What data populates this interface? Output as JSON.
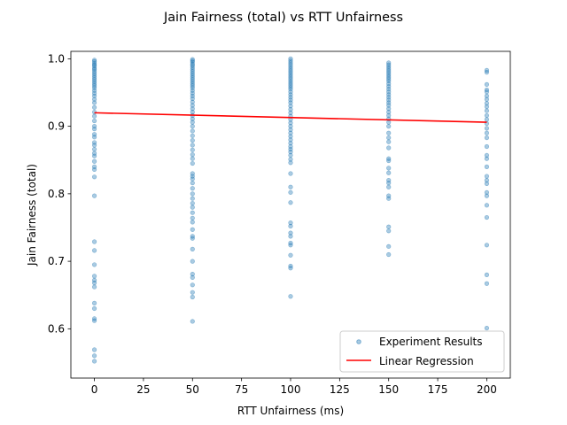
{
  "chart_data": {
    "type": "scatter",
    "title": "Jain Fairness (total) vs RTT Unfairness",
    "xlabel": "RTT Unfairness (ms)",
    "ylabel": "Jain Fairness (total)",
    "xlim": [
      -12,
      212
    ],
    "ylim": [
      0.527,
      1.011
    ],
    "xticks": [
      0,
      25,
      50,
      75,
      100,
      125,
      150,
      175,
      200
    ],
    "yticks": [
      0.6,
      0.7,
      0.8,
      0.9,
      1.0
    ],
    "xtick_labels": [
      "0",
      "25",
      "50",
      "75",
      "100",
      "125",
      "150",
      "175",
      "200"
    ],
    "ytick_labels": [
      "0.6",
      "0.7",
      "0.8",
      "0.9",
      "1.0"
    ],
    "grid": false,
    "legend_position": "lower-right",
    "series": [
      {
        "name": "Experiment Results",
        "kind": "points",
        "color": "#1f77b4",
        "points": [
          [
            0,
            0.998
          ],
          [
            0,
            0.996
          ],
          [
            0,
            0.993
          ],
          [
            0,
            0.991
          ],
          [
            0,
            0.989
          ],
          [
            0,
            0.986
          ],
          [
            0,
            0.984
          ],
          [
            0,
            0.981
          ],
          [
            0,
            0.978
          ],
          [
            0,
            0.975
          ],
          [
            0,
            0.972
          ],
          [
            0,
            0.969
          ],
          [
            0,
            0.966
          ],
          [
            0,
            0.963
          ],
          [
            0,
            0.96
          ],
          [
            0,
            0.957
          ],
          [
            0,
            0.953
          ],
          [
            0,
            0.949
          ],
          [
            0,
            0.945
          ],
          [
            0,
            0.94
          ],
          [
            0,
            0.935
          ],
          [
            0,
            0.928
          ],
          [
            0,
            0.921
          ],
          [
            0,
            0.915
          ],
          [
            0,
            0.908
          ],
          [
            0,
            0.9
          ],
          [
            0,
            0.896
          ],
          [
            0,
            0.888
          ],
          [
            0,
            0.884
          ],
          [
            0,
            0.876
          ],
          [
            0,
            0.872
          ],
          [
            0,
            0.866
          ],
          [
            0,
            0.86
          ],
          [
            0,
            0.856
          ],
          [
            0,
            0.848
          ],
          [
            0,
            0.84
          ],
          [
            0,
            0.836
          ],
          [
            0,
            0.825
          ],
          [
            0,
            0.797
          ],
          [
            0,
            0.729
          ],
          [
            0,
            0.716
          ],
          [
            0,
            0.695
          ],
          [
            0,
            0.678
          ],
          [
            0,
            0.672
          ],
          [
            0,
            0.668
          ],
          [
            0,
            0.662
          ],
          [
            0,
            0.638
          ],
          [
            0,
            0.63
          ],
          [
            0,
            0.615
          ],
          [
            0,
            0.612
          ],
          [
            0,
            0.569
          ],
          [
            0,
            0.56
          ],
          [
            0,
            0.552
          ],
          [
            50,
            0.999
          ],
          [
            50,
            0.997
          ],
          [
            50,
            0.995
          ],
          [
            50,
            0.992
          ],
          [
            50,
            0.99
          ],
          [
            50,
            0.987
          ],
          [
            50,
            0.984
          ],
          [
            50,
            0.981
          ],
          [
            50,
            0.978
          ],
          [
            50,
            0.975
          ],
          [
            50,
            0.972
          ],
          [
            50,
            0.969
          ],
          [
            50,
            0.966
          ],
          [
            50,
            0.963
          ],
          [
            50,
            0.96
          ],
          [
            50,
            0.957
          ],
          [
            50,
            0.953
          ],
          [
            50,
            0.949
          ],
          [
            50,
            0.945
          ],
          [
            50,
            0.941
          ],
          [
            50,
            0.936
          ],
          [
            50,
            0.931
          ],
          [
            50,
            0.926
          ],
          [
            50,
            0.921
          ],
          [
            50,
            0.916
          ],
          [
            50,
            0.911
          ],
          [
            50,
            0.906
          ],
          [
            50,
            0.9
          ],
          [
            50,
            0.893
          ],
          [
            50,
            0.886
          ],
          [
            50,
            0.879
          ],
          [
            50,
            0.872
          ],
          [
            50,
            0.865
          ],
          [
            50,
            0.858
          ],
          [
            50,
            0.852
          ],
          [
            50,
            0.845
          ],
          [
            50,
            0.83
          ],
          [
            50,
            0.826
          ],
          [
            50,
            0.822
          ],
          [
            50,
            0.816
          ],
          [
            50,
            0.808
          ],
          [
            50,
            0.8
          ],
          [
            50,
            0.793
          ],
          [
            50,
            0.786
          ],
          [
            50,
            0.78
          ],
          [
            50,
            0.772
          ],
          [
            50,
            0.764
          ],
          [
            50,
            0.758
          ],
          [
            50,
            0.747
          ],
          [
            50,
            0.737
          ],
          [
            50,
            0.734
          ],
          [
            50,
            0.718
          ],
          [
            50,
            0.7
          ],
          [
            50,
            0.681
          ],
          [
            50,
            0.676
          ],
          [
            50,
            0.665
          ],
          [
            50,
            0.654
          ],
          [
            50,
            0.647
          ],
          [
            50,
            0.611
          ],
          [
            100,
            1.0
          ],
          [
            100,
            0.997
          ],
          [
            100,
            0.994
          ],
          [
            100,
            0.991
          ],
          [
            100,
            0.988
          ],
          [
            100,
            0.985
          ],
          [
            100,
            0.982
          ],
          [
            100,
            0.979
          ],
          [
            100,
            0.976
          ],
          [
            100,
            0.973
          ],
          [
            100,
            0.97
          ],
          [
            100,
            0.967
          ],
          [
            100,
            0.964
          ],
          [
            100,
            0.961
          ],
          [
            100,
            0.958
          ],
          [
            100,
            0.955
          ],
          [
            100,
            0.951
          ],
          [
            100,
            0.947
          ],
          [
            100,
            0.943
          ],
          [
            100,
            0.939
          ],
          [
            100,
            0.935
          ],
          [
            100,
            0.93
          ],
          [
            100,
            0.925
          ],
          [
            100,
            0.92
          ],
          [
            100,
            0.915
          ],
          [
            100,
            0.91
          ],
          [
            100,
            0.905
          ],
          [
            100,
            0.9
          ],
          [
            100,
            0.895
          ],
          [
            100,
            0.89
          ],
          [
            100,
            0.885
          ],
          [
            100,
            0.88
          ],
          [
            100,
            0.875
          ],
          [
            100,
            0.87
          ],
          [
            100,
            0.866
          ],
          [
            100,
            0.862
          ],
          [
            100,
            0.857
          ],
          [
            100,
            0.851
          ],
          [
            100,
            0.846
          ],
          [
            100,
            0.83
          ],
          [
            100,
            0.81
          ],
          [
            100,
            0.802
          ],
          [
            100,
            0.787
          ],
          [
            100,
            0.757
          ],
          [
            100,
            0.752
          ],
          [
            100,
            0.742
          ],
          [
            100,
            0.737
          ],
          [
            100,
            0.727
          ],
          [
            100,
            0.724
          ],
          [
            100,
            0.709
          ],
          [
            100,
            0.693
          ],
          [
            100,
            0.69
          ],
          [
            100,
            0.648
          ],
          [
            150,
            0.994
          ],
          [
            150,
            0.991
          ],
          [
            150,
            0.988
          ],
          [
            150,
            0.985
          ],
          [
            150,
            0.982
          ],
          [
            150,
            0.979
          ],
          [
            150,
            0.976
          ],
          [
            150,
            0.973
          ],
          [
            150,
            0.97
          ],
          [
            150,
            0.967
          ],
          [
            150,
            0.963
          ],
          [
            150,
            0.959
          ],
          [
            150,
            0.955
          ],
          [
            150,
            0.951
          ],
          [
            150,
            0.947
          ],
          [
            150,
            0.943
          ],
          [
            150,
            0.939
          ],
          [
            150,
            0.935
          ],
          [
            150,
            0.931
          ],
          [
            150,
            0.926
          ],
          [
            150,
            0.921
          ],
          [
            150,
            0.916
          ],
          [
            150,
            0.911
          ],
          [
            150,
            0.906
          ],
          [
            150,
            0.9
          ],
          [
            150,
            0.89
          ],
          [
            150,
            0.883
          ],
          [
            150,
            0.877
          ],
          [
            150,
            0.868
          ],
          [
            150,
            0.852
          ],
          [
            150,
            0.849
          ],
          [
            150,
            0.838
          ],
          [
            150,
            0.831
          ],
          [
            150,
            0.82
          ],
          [
            150,
            0.816
          ],
          [
            150,
            0.81
          ],
          [
            150,
            0.797
          ],
          [
            150,
            0.793
          ],
          [
            150,
            0.751
          ],
          [
            150,
            0.745
          ],
          [
            150,
            0.722
          ],
          [
            150,
            0.71
          ],
          [
            200,
            0.983
          ],
          [
            200,
            0.98
          ],
          [
            200,
            0.962
          ],
          [
            200,
            0.954
          ],
          [
            200,
            0.951
          ],
          [
            200,
            0.945
          ],
          [
            200,
            0.94
          ],
          [
            200,
            0.934
          ],
          [
            200,
            0.929
          ],
          [
            200,
            0.923
          ],
          [
            200,
            0.916
          ],
          [
            200,
            0.91
          ],
          [
            200,
            0.904
          ],
          [
            200,
            0.897
          ],
          [
            200,
            0.89
          ],
          [
            200,
            0.883
          ],
          [
            200,
            0.87
          ],
          [
            200,
            0.857
          ],
          [
            200,
            0.852
          ],
          [
            200,
            0.84
          ],
          [
            200,
            0.826
          ],
          [
            200,
            0.82
          ],
          [
            200,
            0.815
          ],
          [
            200,
            0.802
          ],
          [
            200,
            0.797
          ],
          [
            200,
            0.783
          ],
          [
            200,
            0.765
          ],
          [
            200,
            0.724
          ],
          [
            200,
            0.68
          ],
          [
            200,
            0.667
          ],
          [
            200,
            0.601
          ]
        ]
      },
      {
        "name": "Linear Regression",
        "kind": "line",
        "color": "#ff0000",
        "x": [
          0,
          200
        ],
        "y": [
          0.92,
          0.906
        ]
      }
    ]
  }
}
